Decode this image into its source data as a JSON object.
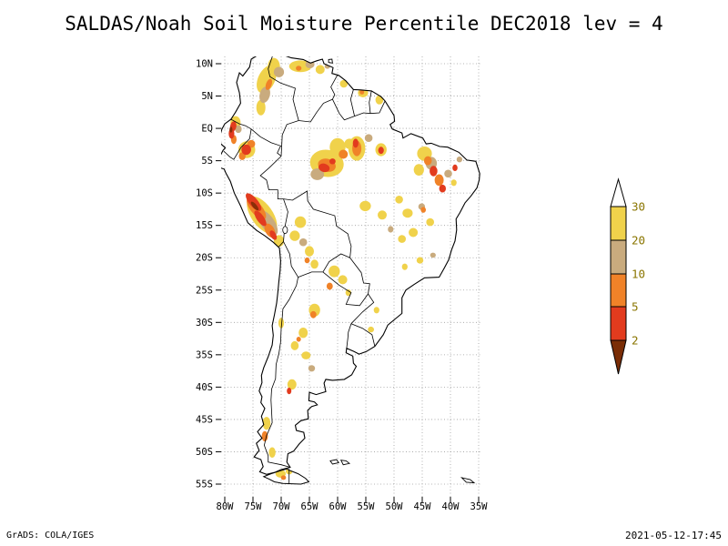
{
  "title": "SALDAS/Noah Soil Moisture Percentile DEC2018 lev = 4",
  "footer": {
    "left": "GrADS: COLA/IGES",
    "right": "2021-05-12-17:45"
  },
  "chart_data": {
    "type": "heatmap",
    "title": "SALDAS/Noah Soil Moisture Percentile DEC2018 lev = 4",
    "region": "South America",
    "units": "soil moisture percentile",
    "grid": true,
    "lon_range": [
      -80,
      -35
    ],
    "lat_range": [
      -55,
      10
    ],
    "x_tick_labels": [
      "80W",
      "75W",
      "70W",
      "65W",
      "60W",
      "55W",
      "50W",
      "45W",
      "40W",
      "35W"
    ],
    "y_tick_labels": [
      "10N",
      "5N",
      "EQ",
      "5S",
      "10S",
      "15S",
      "20S",
      "25S",
      "30S",
      "35S",
      "40S",
      "45S",
      "50S",
      "55S"
    ],
    "colorbar": {
      "levels": [
        "30",
        "20",
        "10",
        "5",
        "2"
      ],
      "label_color": "#8a7500",
      "segment_colors_top_to_bottom": [
        "#ffffff",
        "#f0d24b",
        "#c9ab7e",
        "#f08228",
        "#e23b1e",
        "#7a2d06"
      ],
      "orientation": "vertical",
      "position": "right"
    },
    "level_colors": {
      "30": "#f0d24b",
      "20": "#c9ab7e",
      "10": "#f08228",
      "5": "#e23b1e",
      "2": "#8a2e08"
    },
    "patch_format": [
      "lon",
      "lat",
      "rx_deg",
      "ry_deg",
      "percentile_level",
      "rotation_deg"
    ],
    "patches": [
      [
        -72.6,
        7.6,
        1.5,
        2.3,
        30,
        25
      ],
      [
        -71.3,
        9.5,
        1.1,
        1.4,
        30,
        0
      ],
      [
        -73.6,
        3.2,
        0.8,
        1.2,
        30,
        0
      ],
      [
        -72.9,
        5.2,
        0.9,
        1.3,
        20,
        15
      ],
      [
        -70.4,
        8.7,
        0.9,
        0.8,
        20,
        0
      ],
      [
        -72.2,
        6.8,
        0.5,
        0.9,
        10,
        20
      ],
      [
        -66.6,
        9.6,
        2.0,
        0.9,
        30,
        0
      ],
      [
        -64.9,
        9.9,
        0.8,
        0.6,
        20,
        0
      ],
      [
        -66.9,
        9.3,
        0.5,
        0.4,
        10,
        0
      ],
      [
        -63.1,
        9.1,
        0.8,
        0.7,
        30,
        0
      ],
      [
        -61.8,
        9.6,
        0.5,
        0.4,
        20,
        0
      ],
      [
        -58.9,
        6.9,
        0.7,
        0.6,
        30,
        0
      ],
      [
        -55.5,
        5.5,
        0.9,
        0.7,
        30,
        0
      ],
      [
        -55.7,
        5.6,
        0.4,
        0.35,
        10,
        0
      ],
      [
        -52.6,
        4.4,
        0.7,
        0.7,
        30,
        0
      ],
      [
        -78.1,
        0.9,
        0.9,
        1.0,
        30,
        0
      ],
      [
        -77.6,
        -0.1,
        0.6,
        0.6,
        20,
        0
      ],
      [
        -78.5,
        0.3,
        0.55,
        0.8,
        5,
        10
      ],
      [
        -78.8,
        -0.8,
        0.5,
        0.8,
        5,
        0
      ],
      [
        -78.4,
        -1.7,
        0.5,
        0.7,
        10,
        0
      ],
      [
        -78.9,
        -0.2,
        0.25,
        0.45,
        2,
        0
      ],
      [
        -76.1,
        -3.3,
        1.5,
        1.3,
        30,
        0
      ],
      [
        -76.2,
        -3.3,
        0.85,
        0.8,
        5,
        0
      ],
      [
        -76.9,
        -4.3,
        0.6,
        0.6,
        10,
        0
      ],
      [
        -75.3,
        -2.4,
        0.7,
        0.6,
        10,
        0
      ],
      [
        -61.9,
        -5.4,
        3.0,
        2.1,
        30,
        10
      ],
      [
        -60.0,
        -2.9,
        1.4,
        1.4,
        30,
        0
      ],
      [
        -63.6,
        -7.1,
        1.2,
        0.9,
        20,
        0
      ],
      [
        -61.9,
        -5.7,
        1.6,
        1.0,
        10,
        15
      ],
      [
        -62.4,
        -6.1,
        1.0,
        0.65,
        5,
        15
      ],
      [
        -60.9,
        -5.1,
        0.55,
        0.45,
        5,
        0
      ],
      [
        -59.0,
        -4.0,
        0.8,
        0.7,
        10,
        0
      ],
      [
        -57.9,
        -2.4,
        0.9,
        0.8,
        30,
        0
      ],
      [
        -56.6,
        -3.1,
        1.5,
        1.9,
        30,
        0
      ],
      [
        -56.6,
        -3.1,
        0.8,
        1.2,
        10,
        0
      ],
      [
        -56.8,
        -2.3,
        0.5,
        0.7,
        5,
        0
      ],
      [
        -52.3,
        -3.3,
        1.0,
        1.0,
        30,
        0
      ],
      [
        -52.3,
        -3.4,
        0.5,
        0.55,
        5,
        0
      ],
      [
        -54.5,
        -1.5,
        0.7,
        0.6,
        20,
        0
      ],
      [
        -44.6,
        -3.9,
        1.3,
        1.1,
        30,
        0
      ],
      [
        -45.6,
        -6.4,
        0.9,
        0.9,
        30,
        0
      ],
      [
        -43.4,
        -5.4,
        1.0,
        1.0,
        20,
        0
      ],
      [
        -44.0,
        -5.0,
        0.7,
        0.7,
        10,
        0
      ],
      [
        -43.0,
        -6.6,
        0.7,
        0.8,
        5,
        0
      ],
      [
        -42.0,
        -8.0,
        0.8,
        0.9,
        10,
        0
      ],
      [
        -41.4,
        -9.3,
        0.6,
        0.6,
        5,
        0
      ],
      [
        -40.4,
        -7.0,
        0.7,
        0.6,
        20,
        0
      ],
      [
        -39.4,
        -8.4,
        0.5,
        0.5,
        30,
        0
      ],
      [
        -39.2,
        -6.1,
        0.45,
        0.5,
        5,
        0
      ],
      [
        -38.4,
        -4.8,
        0.5,
        0.45,
        20,
        0
      ],
      [
        -73.4,
        -13.4,
        1.9,
        3.3,
        30,
        -35
      ],
      [
        -72.4,
        -14.6,
        1.2,
        2.3,
        20,
        -35
      ],
      [
        -74.4,
        -12.4,
        1.0,
        2.1,
        10,
        -40
      ],
      [
        -74.9,
        -11.4,
        0.75,
        1.7,
        5,
        -40
      ],
      [
        -73.7,
        -13.9,
        0.65,
        1.4,
        5,
        -35
      ],
      [
        -74.7,
        -12.0,
        0.35,
        0.85,
        2,
        -40
      ],
      [
        -72.0,
        -15.8,
        0.8,
        1.2,
        10,
        -30
      ],
      [
        -71.4,
        -16.5,
        0.5,
        0.8,
        5,
        -30
      ],
      [
        -70.4,
        -17.4,
        0.9,
        0.9,
        30,
        0
      ],
      [
        -66.6,
        -14.5,
        1.0,
        0.9,
        30,
        0
      ],
      [
        -67.6,
        -16.6,
        0.9,
        0.8,
        30,
        0
      ],
      [
        -66.1,
        -17.6,
        0.7,
        0.6,
        20,
        0
      ],
      [
        -65.0,
        -19.0,
        0.8,
        0.8,
        30,
        0
      ],
      [
        -64.1,
        -21.0,
        0.7,
        0.7,
        30,
        0
      ],
      [
        -65.4,
        -20.4,
        0.45,
        0.45,
        10,
        0
      ],
      [
        -55.1,
        -12.0,
        1.0,
        0.8,
        30,
        0
      ],
      [
        -52.1,
        -13.4,
        0.8,
        0.7,
        30,
        0
      ],
      [
        -49.1,
        -11.0,
        0.7,
        0.6,
        30,
        0
      ],
      [
        -47.6,
        -13.1,
        0.9,
        0.7,
        30,
        0
      ],
      [
        -45.1,
        -12.1,
        0.6,
        0.5,
        20,
        0
      ],
      [
        -44.8,
        -12.6,
        0.45,
        0.45,
        10,
        0
      ],
      [
        -43.6,
        -14.5,
        0.7,
        0.6,
        30,
        0
      ],
      [
        -46.6,
        -16.1,
        0.8,
        0.7,
        30,
        0
      ],
      [
        -48.6,
        -17.1,
        0.7,
        0.6,
        30,
        0
      ],
      [
        -50.6,
        -15.6,
        0.5,
        0.5,
        20,
        0
      ],
      [
        -45.4,
        -20.4,
        0.6,
        0.5,
        30,
        0
      ],
      [
        -48.1,
        -21.4,
        0.5,
        0.5,
        30,
        0
      ],
      [
        -43.1,
        -19.6,
        0.5,
        0.4,
        20,
        0
      ],
      [
        -60.6,
        -22.1,
        1.0,
        0.9,
        30,
        0
      ],
      [
        -59.1,
        -23.4,
        0.8,
        0.7,
        30,
        0
      ],
      [
        -61.4,
        -24.4,
        0.55,
        0.55,
        10,
        0
      ],
      [
        -58.1,
        -25.4,
        0.5,
        0.5,
        30,
        0
      ],
      [
        -64.1,
        -28.1,
        1.0,
        1.0,
        30,
        0
      ],
      [
        -64.3,
        -28.8,
        0.55,
        0.55,
        10,
        0
      ],
      [
        -66.1,
        -31.6,
        0.8,
        0.8,
        30,
        0
      ],
      [
        -66.9,
        -32.6,
        0.4,
        0.4,
        10,
        0
      ],
      [
        -67.6,
        -33.6,
        0.7,
        0.7,
        30,
        0
      ],
      [
        -65.6,
        -35.1,
        0.8,
        0.6,
        30,
        0
      ],
      [
        -64.6,
        -37.1,
        0.6,
        0.5,
        20,
        0
      ],
      [
        -68.1,
        -39.6,
        0.8,
        0.8,
        30,
        0
      ],
      [
        -68.6,
        -40.6,
        0.4,
        0.5,
        5,
        0
      ],
      [
        -70.0,
        -30.1,
        0.5,
        0.8,
        30,
        0
      ],
      [
        -54.1,
        -31.1,
        0.55,
        0.45,
        30,
        0
      ],
      [
        -53.1,
        -28.1,
        0.5,
        0.5,
        30,
        0
      ],
      [
        -72.6,
        -45.6,
        0.7,
        1.0,
        30,
        0
      ],
      [
        -72.9,
        -47.6,
        0.55,
        0.8,
        10,
        0
      ],
      [
        -71.6,
        -50.1,
        0.6,
        0.8,
        30,
        0
      ],
      [
        -70.1,
        -53.4,
        0.9,
        0.6,
        30,
        0
      ],
      [
        -69.6,
        -54.0,
        0.45,
        0.35,
        10,
        0
      ],
      [
        -68.6,
        -53.0,
        0.6,
        0.5,
        30,
        0
      ]
    ]
  }
}
